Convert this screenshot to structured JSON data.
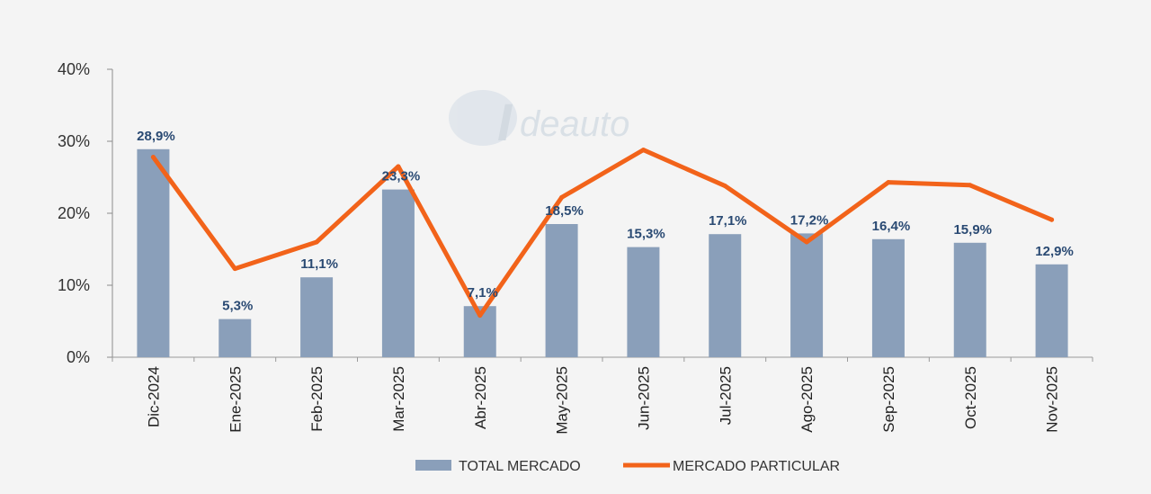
{
  "chart_data": {
    "type": "bar",
    "categories": [
      "Dic-2024",
      "Ene-2025",
      "Feb-2025",
      "Mar-2025",
      "Abr-2025",
      "May-2025",
      "Jun-2025",
      "Jul-2025",
      "Ago-2025",
      "Sep-2025",
      "Oct-2025",
      "Nov-2025"
    ],
    "series": [
      {
        "name": "TOTAL MERCADO",
        "kind": "bar",
        "color": "#8a9fba",
        "values": [
          28.9,
          5.3,
          11.1,
          23.3,
          7.1,
          18.5,
          15.3,
          17.1,
          17.2,
          16.4,
          15.9,
          12.9
        ],
        "labels": [
          "28,9%",
          "5,3%",
          "11,1%",
          "23,3%",
          "7,1%",
          "18,5%",
          "15,3%",
          "17,1%",
          "17,2%",
          "16,4%",
          "15,9%",
          "12,9%"
        ]
      },
      {
        "name": "MERCADO PARTICULAR",
        "kind": "line",
        "color": "#f2631a",
        "values": [
          27.8,
          12.3,
          16.0,
          26.5,
          5.8,
          22.2,
          28.8,
          23.8,
          16.0,
          24.3,
          23.9,
          19.1
        ]
      }
    ],
    "yticks": [
      0,
      10,
      20,
      30,
      40
    ],
    "ytick_labels": [
      "0%",
      "10%",
      "20%",
      "30%",
      "40%"
    ],
    "ylim": [
      0,
      40
    ],
    "title": "",
    "xlabel": "",
    "ylabel": "",
    "legend_position": "bottom-center"
  },
  "watermark": {
    "text": "deauto",
    "logo_letter": "I"
  }
}
